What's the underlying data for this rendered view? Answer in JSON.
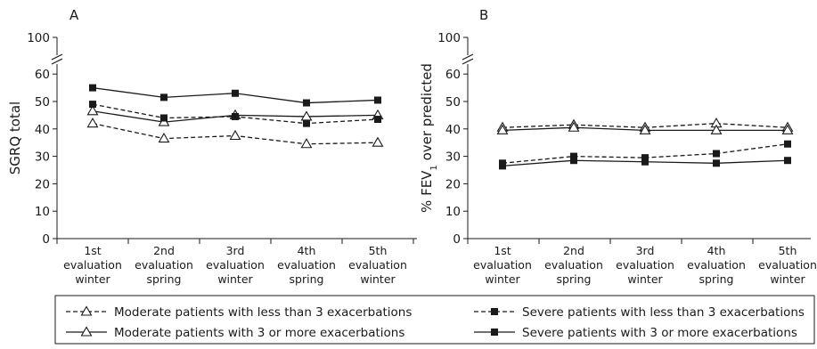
{
  "chart_data": [
    {
      "type": "line",
      "panel_label": "A",
      "title": "",
      "xlabel": "",
      "ylabel": "SGRQ total",
      "ylim": [
        0,
        100
      ],
      "y_axis_break": [
        60,
        100
      ],
      "yticks": [
        "0",
        "10",
        "20",
        "30",
        "40",
        "50",
        "60",
        "100"
      ],
      "categories": [
        [
          "1st",
          "evaluation",
          "winter"
        ],
        [
          "2nd",
          "evaluation",
          "spring"
        ],
        [
          "3rd",
          "evaluation",
          "winter"
        ],
        [
          "4th",
          "evaluation",
          "spring"
        ],
        [
          "5th",
          "evaluation",
          "winter"
        ]
      ],
      "grid": false,
      "series": [
        {
          "name": "Moderate patients with less than 3 exacerbations",
          "marker": "open-triangle",
          "line": "dashed",
          "values": [
            42,
            36.5,
            37.5,
            34.5,
            35
          ]
        },
        {
          "name": "Moderate patients with 3 or more exacerbations",
          "marker": "open-triangle",
          "line": "solid",
          "values": [
            46.5,
            42.5,
            45,
            44.5,
            45
          ]
        },
        {
          "name": "Severe patients with less than 3 exacerbations",
          "marker": "filled-square",
          "line": "dashed",
          "values": [
            49,
            44,
            44.5,
            42,
            43.5
          ]
        },
        {
          "name": "Severe patients with 3 or more exacerbations",
          "marker": "filled-square",
          "line": "solid",
          "values": [
            55,
            51.5,
            53,
            49.5,
            50.5
          ]
        }
      ]
    },
    {
      "type": "line",
      "panel_label": "B",
      "title": "",
      "xlabel": "",
      "ylabel_main": "% FEV",
      "ylabel_sub": "1",
      "ylabel_rest": " over predicted",
      "ylim": [
        0,
        100
      ],
      "y_axis_break": [
        60,
        100
      ],
      "yticks": [
        "0",
        "10",
        "20",
        "30",
        "40",
        "50",
        "60",
        "100"
      ],
      "categories": [
        [
          "1st",
          "evaluation",
          "winter"
        ],
        [
          "2nd",
          "evaluation",
          "spring"
        ],
        [
          "3rd",
          "evaluation",
          "winter"
        ],
        [
          "4th",
          "evaluation",
          "spring"
        ],
        [
          "5th",
          "evaluation",
          "winter"
        ]
      ],
      "grid": false,
      "series": [
        {
          "name": "Moderate patients with less than 3 exacerbations",
          "marker": "open-triangle",
          "line": "dashed",
          "values": [
            40.5,
            41.5,
            40.5,
            42,
            40.5
          ]
        },
        {
          "name": "Moderate patients with 3 or more exacerbations",
          "marker": "open-triangle",
          "line": "solid",
          "values": [
            39.5,
            40.5,
            39.5,
            39.5,
            39.5
          ]
        },
        {
          "name": "Severe patients with less than 3 exacerbations",
          "marker": "filled-square",
          "line": "dashed",
          "values": [
            27.5,
            30,
            29.5,
            31,
            34.5
          ]
        },
        {
          "name": "Severe patients with 3 or more exacerbations",
          "marker": "filled-square",
          "line": "solid",
          "values": [
            26.5,
            28.5,
            28,
            27.5,
            28.5
          ]
        }
      ]
    }
  ],
  "legend": {
    "placement": "bottom",
    "entries": [
      {
        "label": "Moderate patients with less than 3 exacerbations",
        "marker": "open-triangle",
        "line": "dashed"
      },
      {
        "label": "Severe patients with less than 3 exacerbations",
        "marker": "filled-square",
        "line": "dashed"
      },
      {
        "label": "Moderate patients with 3 or more exacerbations",
        "marker": "open-triangle",
        "line": "solid"
      },
      {
        "label": "Severe patients with 3 or more exacerbations",
        "marker": "filled-square",
        "line": "solid"
      }
    ]
  },
  "colors": {
    "ink": "#1a1a1a",
    "background": "#ffffff"
  }
}
